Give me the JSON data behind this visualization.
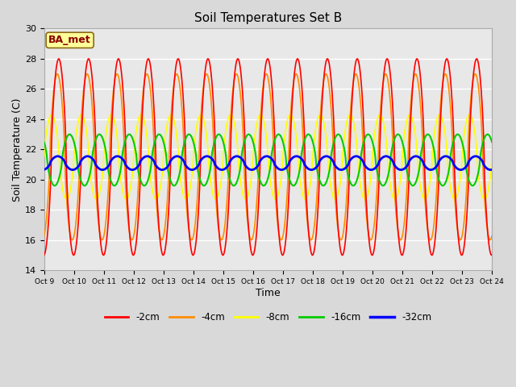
{
  "title": "Soil Temperatures Set B",
  "xlabel": "Time",
  "ylabel": "Soil Temperature (C)",
  "ylim": [
    14,
    30
  ],
  "xlim": [
    0,
    15
  ],
  "fig_bg_color": "#d9d9d9",
  "plot_bg_color": "#e8e8e8",
  "annotation_text": "BA_met",
  "annotation_bg": "#ffff99",
  "annotation_border": "#8b6914",
  "annotation_text_color": "#8b0000",
  "tick_labels": [
    "Oct 9",
    "Oct 10",
    "Oct 11",
    "Oct 12",
    "Oct 13",
    "Oct 14",
    "Oct 15",
    "Oct 16",
    "Oct 17",
    "Oct 18",
    "Oct 19",
    "Oct 20",
    "Oct 21",
    "Oct 22",
    "Oct 23",
    "Oct 24"
  ],
  "legend_labels": [
    "-2cm",
    "-4cm",
    "-8cm",
    "-16cm",
    "-32cm"
  ],
  "legend_colors": [
    "#ff0000",
    "#ff8c00",
    "#ffff00",
    "#00cc00",
    "#0000ff"
  ],
  "line_widths": [
    1.2,
    1.2,
    1.2,
    1.5,
    2.0
  ],
  "n_days": 15,
  "pts_per_day": 48,
  "base_2": 21.5,
  "amp_2": 6.5,
  "phase_2": -1.5,
  "base_4": 21.5,
  "amp_4": 5.5,
  "phase_4": -1.2,
  "base_8": 21.5,
  "amp_8": 2.8,
  "phase_8": 0.0,
  "base_16": 21.3,
  "amp_16": 1.7,
  "phase_16": 2.5,
  "base_32": 21.1,
  "amp_32": 0.45,
  "phase_32": 5.0,
  "yticks": [
    14,
    16,
    18,
    20,
    22,
    24,
    26,
    28,
    30
  ]
}
